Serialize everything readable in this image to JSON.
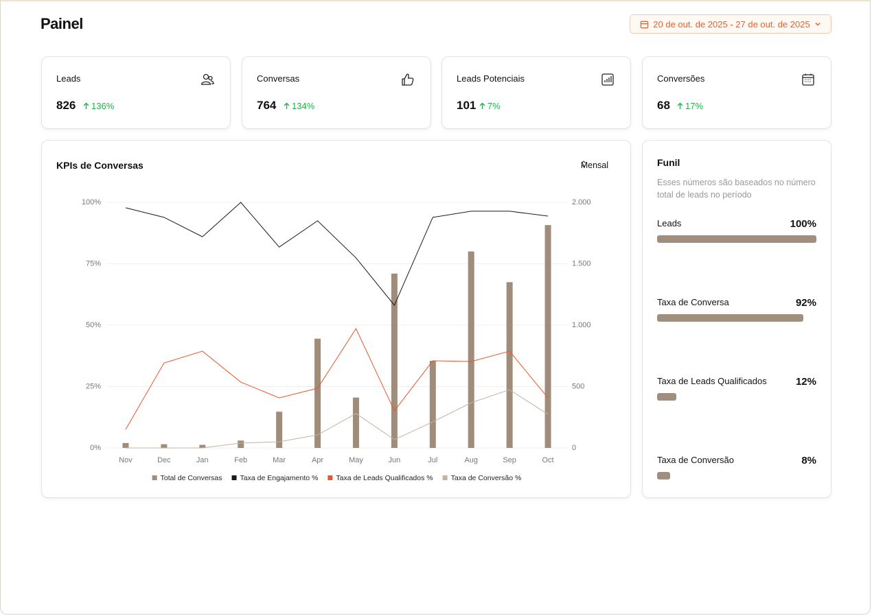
{
  "header": {
    "title": "Painel",
    "date_range": "20 de out. de 2025 - 27 de out. de 2025"
  },
  "kpis": [
    {
      "label": "Leads",
      "value": 826,
      "change": "136%"
    },
    {
      "label": "Conversas",
      "value": 764,
      "change": "134%"
    },
    {
      "label": "Leads Potenciais",
      "value": 101,
      "change": "7%"
    },
    {
      "label": "Conversões",
      "value": 68,
      "change": "17%"
    }
  ],
  "period_selector": "Mensal",
  "chart_data": {
    "type": "combo",
    "title": "KPIs de Conversas",
    "categories": [
      "Nov",
      "Dec",
      "Jan",
      "Feb",
      "Mar",
      "Apr",
      "May",
      "Jun",
      "Jul",
      "Aug",
      "Sep",
      "Oct"
    ],
    "series": [
      {
        "name": "Total de Conversas",
        "type": "bar",
        "axis": "y2",
        "color": "#a08c7a",
        "values": [
          40,
          30,
          25,
          60,
          295,
          890,
          410,
          1420,
          710,
          1600,
          1350,
          1815
        ]
      },
      {
        "name": "Taxa de Engajamento %",
        "type": "line",
        "color": "#1a1a1a",
        "values": [
          97.8,
          93.9,
          86,
          100,
          81.8,
          92.5,
          77.4,
          58.1,
          93.9,
          96.4,
          96.4,
          94.4
        ]
      },
      {
        "name": "Taxa de Leads Qualificados %",
        "type": "line",
        "color": "#e8572a",
        "values": [
          7.5,
          34.6,
          39.4,
          26.8,
          20.4,
          24.3,
          48.6,
          15.1,
          35.5,
          35.2,
          39.4,
          20.4
        ]
      },
      {
        "name": "Taxa de Conversão %",
        "type": "line",
        "color": "#c2b3a3",
        "values": [
          0,
          0,
          0,
          2,
          2.5,
          5.3,
          14,
          3.4,
          10.6,
          18.4,
          23.7,
          13.7
        ]
      }
    ],
    "ylim": [
      0,
      100
    ],
    "yticks": [
      {
        "value": 0,
        "label": "0%"
      },
      {
        "value": 25,
        "label": "25%"
      },
      {
        "value": 50,
        "label": "50%"
      },
      {
        "value": 75,
        "label": "75%"
      },
      {
        "value": 100,
        "label": "100%"
      }
    ],
    "y2lim": [
      0,
      2000
    ],
    "y2ticks": [
      0,
      500,
      {
        "value": 1000,
        "label": "1.000"
      },
      {
        "value": 1500,
        "label": "1.500"
      },
      {
        "value": 2000,
        "label": "2.000"
      }
    ],
    "grid": true,
    "legend": "bottom"
  },
  "funnel": {
    "title": "Funil",
    "description": "Esses números são baseados no número total de leads no período",
    "color": "#a08f7e",
    "rows": [
      {
        "label": "Leads",
        "value": 100,
        "value_label": "100%"
      },
      {
        "label": "Taxa de Conversa",
        "value": 92,
        "value_label": "92%"
      },
      {
        "label": "Taxa de Leads Qualificados",
        "value": 12,
        "value_label": "12%"
      },
      {
        "label": "Taxa de Conversão",
        "value": 8,
        "value_label": "8%"
      }
    ]
  }
}
